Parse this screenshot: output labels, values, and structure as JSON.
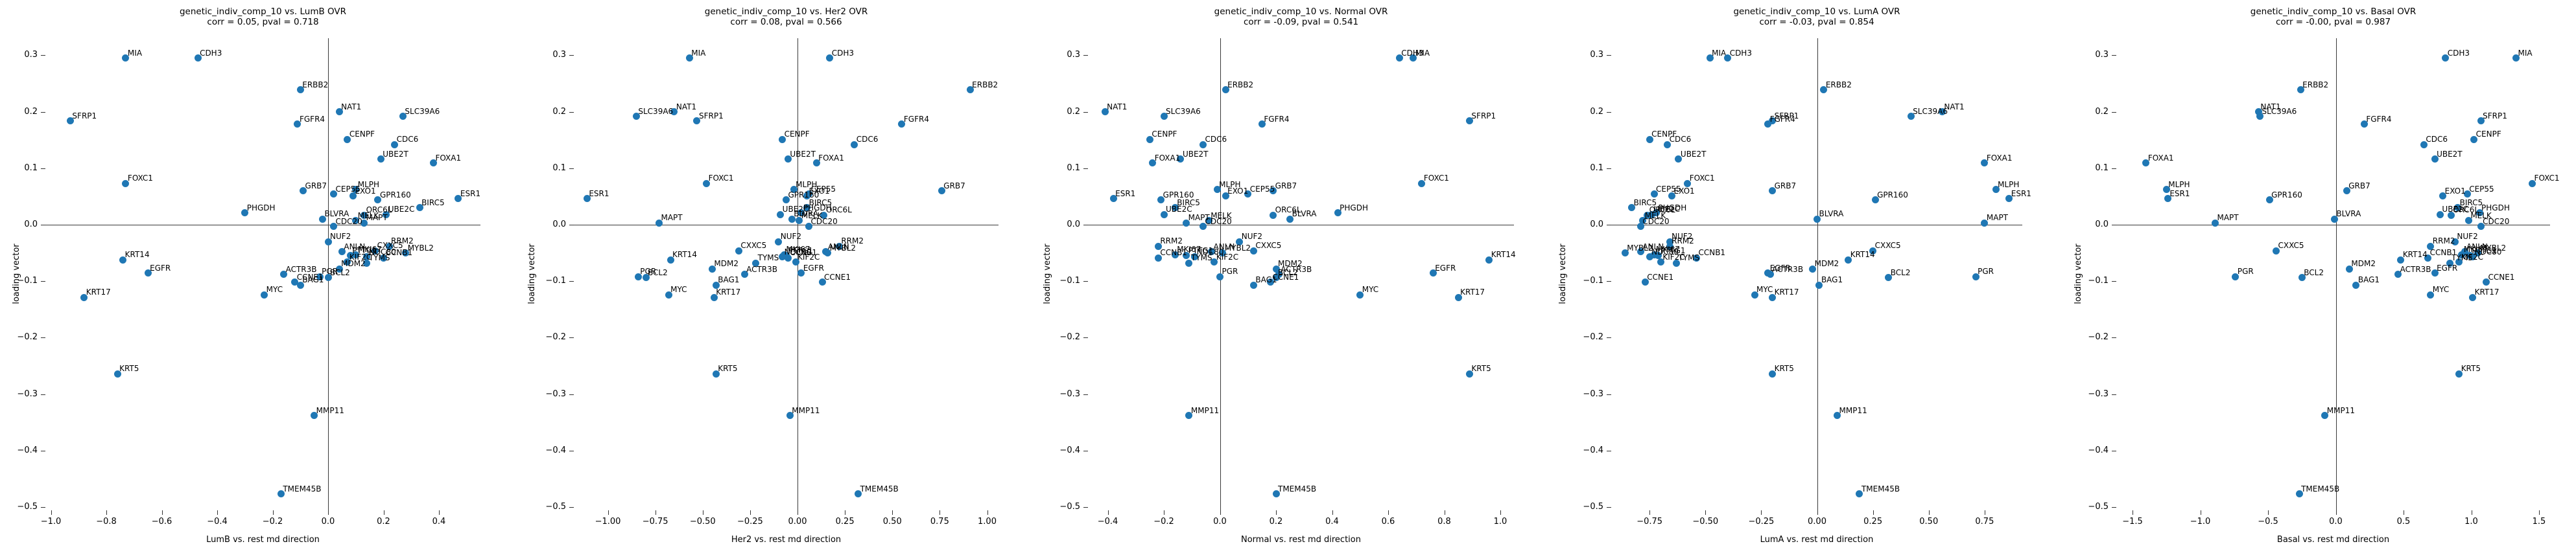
{
  "figure_title": "genetic_indiv_comp_10 loading vector vs subtype OVR md directions",
  "chart_data": {
    "type": "scatter",
    "ylabel": "loading vector",
    "point_color": "#1f77b4",
    "grid": false,
    "legend": "none",
    "ylim": [
      -0.507,
      0.33
    ],
    "yticks": {
      "values": [
        0.3,
        0.2,
        0.1,
        0.0,
        -0.1,
        -0.2,
        -0.3,
        -0.4,
        -0.5
      ],
      "labels": [
        "0.3",
        "0.2",
        "0.1",
        "0.0",
        "−0.1",
        "−0.2",
        "−0.3",
        "−0.4",
        "−0.5"
      ]
    },
    "plots": [
      {
        "key": "LumB",
        "title": "genetic_indiv_comp_10 vs. LumB OVR",
        "subtitle": "corr = 0.05, pval = 0.718",
        "corr": 0.05,
        "pval": 0.718,
        "xlabel": "LumB vs. rest md direction",
        "xlim": [
          -1.02,
          0.55
        ],
        "xticks": {
          "values": [
            -1.0,
            -0.8,
            -0.6,
            -0.4,
            -0.2,
            0.0,
            0.2,
            0.4
          ],
          "labels": [
            "−1.0",
            "−0.8",
            "−0.6",
            "−0.4",
            "−0.2",
            "0.0",
            "0.2",
            "0.4"
          ]
        }
      },
      {
        "key": "Her2",
        "title": "genetic_indiv_comp_10 vs. Her2 OVR",
        "subtitle": "corr = 0.08, pval = 0.566",
        "corr": 0.08,
        "pval": 0.566,
        "xlabel": "Her2 vs. rest md direction",
        "xlim": [
          -1.18,
          1.06
        ],
        "xticks": {
          "values": [
            -1.0,
            -0.75,
            -0.5,
            -0.25,
            0.0,
            0.25,
            0.5,
            0.75,
            1.0
          ],
          "labels": [
            "−1.00",
            "−0.75",
            "−0.50",
            "−0.25",
            "0.00",
            "0.25",
            "0.50",
            "0.75",
            "1.00"
          ]
        }
      },
      {
        "key": "Normal",
        "title": "genetic_indiv_comp_10 vs. Normal OVR",
        "subtitle": "corr = -0.09, pval = 0.541",
        "corr": -0.09,
        "pval": 0.541,
        "xlabel": "Normal vs. rest md direction",
        "xlim": [
          -0.47,
          1.05
        ],
        "xticks": {
          "values": [
            -0.4,
            -0.2,
            0.0,
            0.2,
            0.4,
            0.6,
            0.8,
            1.0
          ],
          "labels": [
            "−0.4",
            "−0.2",
            "0.0",
            "0.2",
            "0.4",
            "0.6",
            "0.8",
            "1.0"
          ]
        }
      },
      {
        "key": "LumA",
        "title": "genetic_indiv_comp_10 vs. LumA OVR",
        "subtitle": "corr = -0.03, pval = 0.854",
        "corr": -0.03,
        "pval": 0.854,
        "xlabel": "LumA vs. rest md direction",
        "xlim": [
          -0.92,
          0.92
        ],
        "xticks": {
          "values": [
            -0.75,
            -0.5,
            -0.25,
            0.0,
            0.25,
            0.5,
            0.75
          ],
          "labels": [
            "−0.75",
            "−0.50",
            "−0.25",
            "0.00",
            "0.25",
            "0.50",
            "0.75"
          ]
        }
      },
      {
        "key": "Basal",
        "title": "genetic_indiv_comp_10 vs. Basal OVR",
        "subtitle": "corr = -0.00, pval = 0.987",
        "corr": -0.0,
        "pval": 0.987,
        "xlabel": "Basal vs. rest md direction",
        "xlim": [
          -1.62,
          1.58
        ],
        "xticks": {
          "values": [
            -1.5,
            -1.0,
            -0.5,
            0.0,
            0.5,
            1.0,
            1.5
          ],
          "labels": [
            "−1.5",
            "−1.0",
            "−0.5",
            "0.0",
            "0.5",
            "1.0",
            "1.5"
          ]
        }
      }
    ],
    "genes": [
      {
        "name": "MIA",
        "loading": 0.295,
        "x": {
          "LumB": -0.73,
          "Her2": -0.57,
          "Normal": 0.69,
          "LumA": -0.48,
          "Basal": 1.33
        }
      },
      {
        "name": "CDH3",
        "loading": 0.295,
        "x": {
          "LumB": -0.47,
          "Her2": 0.17,
          "Normal": 0.64,
          "LumA": -0.4,
          "Basal": 0.81
        }
      },
      {
        "name": "ERBB2",
        "loading": 0.239,
        "x": {
          "LumB": -0.1,
          "Her2": 0.91,
          "Normal": 0.02,
          "LumA": 0.03,
          "Basal": -0.26
        }
      },
      {
        "name": "NAT1",
        "loading": 0.2,
        "x": {
          "LumB": 0.04,
          "Her2": -0.65,
          "Normal": -0.41,
          "LumA": 0.56,
          "Basal": -0.57
        }
      },
      {
        "name": "SLC39A6",
        "loading": 0.192,
        "x": {
          "LumB": 0.27,
          "Her2": -0.85,
          "Normal": -0.2,
          "LumA": 0.42,
          "Basal": -0.56
        }
      },
      {
        "name": "SFRP1",
        "loading": 0.184,
        "x": {
          "LumB": -0.93,
          "Her2": -0.53,
          "Normal": 0.89,
          "LumA": -0.2,
          "Basal": 1.07
        }
      },
      {
        "name": "FGFR4",
        "loading": 0.178,
        "x": {
          "LumB": -0.11,
          "Her2": 0.55,
          "Normal": 0.15,
          "LumA": -0.22,
          "Basal": 0.21
        }
      },
      {
        "name": "CENPF",
        "loading": 0.151,
        "x": {
          "LumB": 0.07,
          "Her2": -0.08,
          "Normal": -0.25,
          "LumA": -0.75,
          "Basal": 1.02
        }
      },
      {
        "name": "CDC6",
        "loading": 0.142,
        "x": {
          "LumB": 0.24,
          "Her2": 0.3,
          "Normal": -0.06,
          "LumA": -0.67,
          "Basal": 0.65
        }
      },
      {
        "name": "UBE2T",
        "loading": 0.116,
        "x": {
          "LumB": 0.19,
          "Her2": -0.05,
          "Normal": -0.14,
          "LumA": -0.62,
          "Basal": 0.73
        }
      },
      {
        "name": "FOXA1",
        "loading": 0.109,
        "x": {
          "LumB": 0.38,
          "Her2": 0.1,
          "Normal": -0.24,
          "LumA": 0.75,
          "Basal": -1.4
        }
      },
      {
        "name": "FOXC1",
        "loading": 0.073,
        "x": {
          "LumB": -0.73,
          "Her2": -0.48,
          "Normal": 0.72,
          "LumA": -0.58,
          "Basal": 1.45
        }
      },
      {
        "name": "MLPH",
        "loading": 0.062,
        "x": {
          "LumB": 0.1,
          "Her2": -0.02,
          "Normal": -0.01,
          "LumA": 0.8,
          "Basal": -1.25
        }
      },
      {
        "name": "GRB7",
        "loading": 0.06,
        "x": {
          "LumB": -0.09,
          "Her2": 0.76,
          "Normal": 0.19,
          "LumA": -0.2,
          "Basal": 0.08
        }
      },
      {
        "name": "CEP55",
        "loading": 0.054,
        "x": {
          "LumB": 0.02,
          "Her2": 0.06,
          "Normal": 0.1,
          "LumA": -0.73,
          "Basal": 0.97
        }
      },
      {
        "name": "EXO1",
        "loading": 0.051,
        "x": {
          "LumB": 0.09,
          "Her2": 0.05,
          "Normal": 0.02,
          "LumA": -0.65,
          "Basal": 0.79
        }
      },
      {
        "name": "ESR1",
        "loading": 0.046,
        "x": {
          "LumB": 0.47,
          "Her2": -1.11,
          "Normal": -0.38,
          "LumA": 0.86,
          "Basal": -1.24
        }
      },
      {
        "name": "GPR160",
        "loading": 0.044,
        "x": {
          "LumB": 0.18,
          "Her2": -0.06,
          "Normal": -0.21,
          "LumA": 0.26,
          "Basal": -0.49
        }
      },
      {
        "name": "BIRC5",
        "loading": 0.03,
        "x": {
          "LumB": 0.33,
          "Her2": 0.05,
          "Normal": -0.16,
          "LumA": -0.83,
          "Basal": 0.9
        }
      },
      {
        "name": "PHGDH",
        "loading": 0.021,
        "x": {
          "LumB": -0.3,
          "Her2": 0.02,
          "Normal": 0.42,
          "LumA": -0.72,
          "Basal": 1.06
        }
      },
      {
        "name": "UBE2C",
        "loading": 0.018,
        "x": {
          "LumB": 0.21,
          "Her2": -0.09,
          "Normal": -0.2,
          "LumA": -0.74,
          "Basal": 0.77
        }
      },
      {
        "name": "ORC6L",
        "loading": 0.017,
        "x": {
          "LumB": 0.13,
          "Her2": 0.14,
          "Normal": 0.19,
          "LumA": -0.76,
          "Basal": 0.85
        }
      },
      {
        "name": "BLVRA",
        "loading": 0.01,
        "x": {
          "LumB": -0.02,
          "Her2": -0.03,
          "Normal": 0.25,
          "LumA": 0.0,
          "Basal": -0.01
        }
      },
      {
        "name": "MELK",
        "loading": 0.007,
        "x": {
          "LumB": 0.1,
          "Her2": 0.01,
          "Normal": -0.04,
          "LumA": -0.78,
          "Basal": 0.98
        }
      },
      {
        "name": "MAPT",
        "loading": 0.003,
        "x": {
          "LumB": 0.13,
          "Her2": -0.73,
          "Normal": -0.12,
          "LumA": 0.75,
          "Basal": -0.89
        }
      },
      {
        "name": "CDC20",
        "loading": -0.003,
        "x": {
          "LumB": 0.02,
          "Her2": 0.06,
          "Normal": -0.06,
          "LumA": -0.79,
          "Basal": 1.07
        }
      },
      {
        "name": "NUF2",
        "loading": -0.03,
        "x": {
          "LumB": 0.0,
          "Her2": -0.1,
          "Normal": 0.07,
          "LumA": -0.66,
          "Basal": 0.88
        }
      },
      {
        "name": "RRM2",
        "loading": -0.038,
        "x": {
          "LumB": 0.22,
          "Her2": 0.22,
          "Normal": -0.22,
          "LumA": -0.66,
          "Basal": 0.7
        }
      },
      {
        "name": "CXXC5",
        "loading": -0.046,
        "x": {
          "LumB": 0.17,
          "Her2": -0.31,
          "Normal": 0.12,
          "LumA": 0.25,
          "Basal": -0.44
        }
      },
      {
        "name": "ANLN",
        "loading": -0.048,
        "x": {
          "LumB": 0.05,
          "Her2": 0.15,
          "Normal": -0.03,
          "LumA": -0.79,
          "Basal": 0.95
        }
      },
      {
        "name": "MYBL2",
        "loading": -0.05,
        "x": {
          "LumB": 0.28,
          "Her2": 0.16,
          "Normal": 0.01,
          "LumA": -0.86,
          "Basal": 1.05
        }
      },
      {
        "name": "MKI67",
        "loading": -0.053,
        "x": {
          "LumB": 0.1,
          "Her2": -0.07,
          "Normal": -0.16,
          "LumA": -0.73,
          "Basal": 0.93
        }
      },
      {
        "name": "PTTG1",
        "loading": -0.055,
        "x": {
          "LumB": 0.08,
          "Her2": -0.06,
          "Normal": -0.12,
          "LumA": -0.71,
          "Basal": 0.99
        }
      },
      {
        "name": "NDC80",
        "loading": -0.057,
        "x": {
          "LumB": 0.14,
          "Her2": -0.08,
          "Normal": -0.09,
          "LumA": -0.75,
          "Basal": 1.01
        }
      },
      {
        "name": "CCNB1",
        "loading": -0.059,
        "x": {
          "LumB": 0.2,
          "Her2": -0.05,
          "Normal": -0.22,
          "LumA": -0.54,
          "Basal": 0.68
        }
      },
      {
        "name": "KRT14",
        "loading": -0.062,
        "x": {
          "LumB": -0.74,
          "Her2": -0.67,
          "Normal": 0.96,
          "LumA": 0.14,
          "Basal": 0.48
        }
      },
      {
        "name": "KIF2C",
        "loading": -0.066,
        "x": {
          "LumB": 0.07,
          "Her2": -0.01,
          "Normal": -0.02,
          "LumA": -0.7,
          "Basal": 0.91
        }
      },
      {
        "name": "TYMS",
        "loading": -0.068,
        "x": {
          "LumB": 0.14,
          "Her2": -0.22,
          "Normal": -0.11,
          "LumA": -0.63,
          "Basal": 0.84
        }
      },
      {
        "name": "MDM2",
        "loading": -0.078,
        "x": {
          "LumB": 0.04,
          "Her2": -0.45,
          "Normal": 0.2,
          "LumA": -0.02,
          "Basal": 0.1
        }
      },
      {
        "name": "EGFR",
        "loading": -0.086,
        "x": {
          "LumB": -0.65,
          "Her2": 0.02,
          "Normal": 0.76,
          "LumA": -0.22,
          "Basal": 0.73
        }
      },
      {
        "name": "ACTR3B",
        "loading": -0.088,
        "x": {
          "LumB": -0.16,
          "Her2": -0.28,
          "Normal": 0.21,
          "LumA": -0.21,
          "Basal": 0.46
        }
      },
      {
        "name": "PGR",
        "loading": -0.092,
        "x": {
          "LumB": -0.03,
          "Her2": -0.84,
          "Normal": 0.0,
          "LumA": 0.71,
          "Basal": -0.74
        }
      },
      {
        "name": "BCL2",
        "loading": -0.094,
        "x": {
          "LumB": 0.0,
          "Her2": -0.8,
          "Normal": 0.2,
          "LumA": 0.32,
          "Basal": -0.25
        }
      },
      {
        "name": "CCNE1",
        "loading": -0.102,
        "x": {
          "LumB": -0.12,
          "Her2": 0.13,
          "Normal": 0.18,
          "LumA": -0.77,
          "Basal": 1.11
        }
      },
      {
        "name": "BAG1",
        "loading": -0.107,
        "x": {
          "LumB": -0.1,
          "Her2": -0.43,
          "Normal": 0.12,
          "LumA": 0.01,
          "Basal": 0.15
        }
      },
      {
        "name": "MYC",
        "loading": -0.124,
        "x": {
          "LumB": -0.23,
          "Her2": -0.68,
          "Normal": 0.5,
          "LumA": -0.28,
          "Basal": 0.7
        }
      },
      {
        "name": "KRT17",
        "loading": -0.129,
        "x": {
          "LumB": -0.88,
          "Her2": -0.44,
          "Normal": 0.85,
          "LumA": -0.2,
          "Basal": 1.01
        }
      },
      {
        "name": "KRT5",
        "loading": -0.264,
        "x": {
          "LumB": -0.76,
          "Her2": -0.43,
          "Normal": 0.89,
          "LumA": -0.2,
          "Basal": 0.91
        }
      },
      {
        "name": "MMP11",
        "loading": -0.338,
        "x": {
          "LumB": -0.05,
          "Her2": -0.04,
          "Normal": -0.11,
          "LumA": 0.09,
          "Basal": -0.08
        }
      },
      {
        "name": "TMEM45B",
        "loading": -0.477,
        "x": {
          "LumB": -0.17,
          "Her2": 0.32,
          "Normal": 0.2,
          "LumA": 0.19,
          "Basal": -0.27
        }
      }
    ]
  }
}
